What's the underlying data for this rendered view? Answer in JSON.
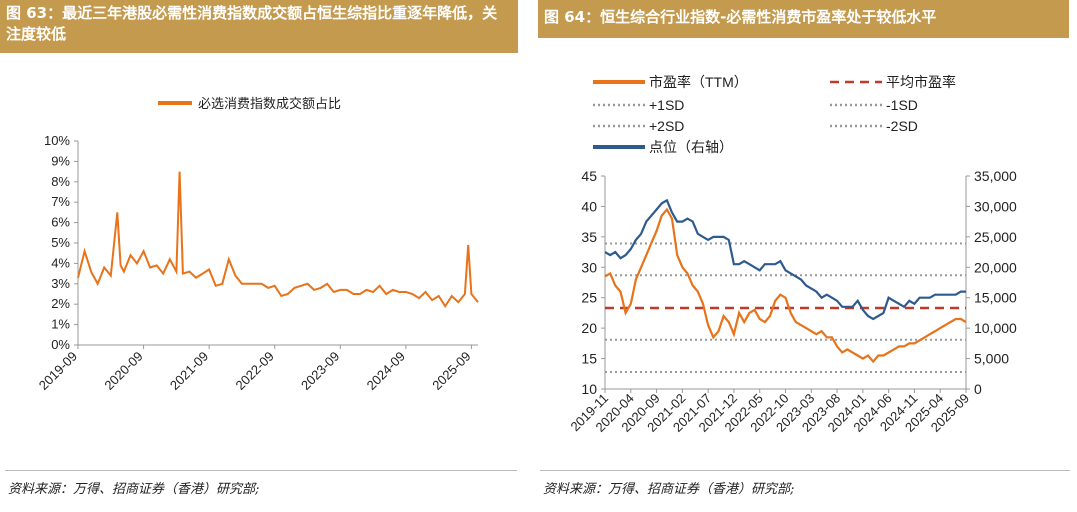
{
  "fig63": {
    "title": "图 63：最近三年港股必需性消费指数成交额占恒生综指比重逐年降低，关注度较低",
    "source": "资料来源：万得、招商证券（香港）研究部;",
    "chart_data": {
      "type": "line",
      "ylim": [
        0,
        10
      ],
      "y_ticks": [
        "0%",
        "1%",
        "2%",
        "3%",
        "4%",
        "5%",
        "6%",
        "7%",
        "8%",
        "9%",
        "10%"
      ],
      "x_ticks": [
        "2019-09",
        "2020-09",
        "2021-09",
        "2022-09",
        "2023-09",
        "2024-09",
        "2025-09"
      ],
      "series": [
        {
          "name": "必选消费指数成交额占比",
          "color": "#e8731a",
          "x": [
            2019.7,
            2019.8,
            2019.9,
            2020.0,
            2020.1,
            2020.2,
            2020.3,
            2020.35,
            2020.4,
            2020.5,
            2020.6,
            2020.7,
            2020.8,
            2020.9,
            2021.0,
            2021.1,
            2021.2,
            2021.25,
            2021.3,
            2021.4,
            2021.5,
            2021.6,
            2021.7,
            2021.8,
            2021.9,
            2022.0,
            2022.1,
            2022.2,
            2022.3,
            2022.4,
            2022.5,
            2022.6,
            2022.7,
            2022.8,
            2022.9,
            2023.0,
            2023.1,
            2023.2,
            2023.3,
            2023.4,
            2023.5,
            2023.6,
            2023.7,
            2023.8,
            2023.9,
            2024.0,
            2024.1,
            2024.2,
            2024.3,
            2024.4,
            2024.5,
            2024.6,
            2024.7,
            2024.8,
            2024.9,
            2025.0,
            2025.1,
            2025.2,
            2025.3,
            2025.4,
            2025.5,
            2025.6,
            2025.65,
            2025.7,
            2025.75,
            2025.8
          ],
          "values": [
            3.3,
            4.6,
            3.6,
            3.0,
            3.8,
            3.4,
            6.5,
            3.9,
            3.6,
            4.4,
            4.0,
            4.6,
            3.8,
            3.9,
            3.5,
            4.2,
            3.6,
            8.5,
            3.5,
            3.6,
            3.3,
            3.5,
            3.7,
            2.9,
            3.0,
            4.2,
            3.4,
            3.0,
            3.0,
            3.0,
            3.0,
            2.8,
            2.9,
            2.4,
            2.5,
            2.8,
            2.9,
            3.0,
            2.7,
            2.8,
            3.0,
            2.6,
            2.7,
            2.7,
            2.5,
            2.5,
            2.7,
            2.6,
            2.9,
            2.5,
            2.7,
            2.6,
            2.6,
            2.5,
            2.3,
            2.6,
            2.2,
            2.4,
            1.9,
            2.4,
            2.1,
            2.5,
            4.9,
            2.5,
            2.3,
            2.1
          ]
        }
      ]
    }
  },
  "fig64": {
    "title": "图 64：恒生综合行业指数-必需性消费市盈率处于较低水平",
    "source": "资料来源：万得、招商证券（香港）研究部;",
    "chart_data": {
      "type": "line",
      "ylim_left": [
        10,
        45
      ],
      "ylim_right": [
        0,
        35000
      ],
      "y_ticks_left": [
        "10",
        "15",
        "20",
        "25",
        "30",
        "35",
        "40",
        "45"
      ],
      "y_ticks_right": [
        "0",
        "5,000",
        "10,000",
        "15,000",
        "20,000",
        "25,000",
        "30,000",
        "35,000"
      ],
      "x_ticks": [
        "2019-11",
        "2020-04",
        "2020-09",
        "2021-02",
        "2021-07",
        "2021-12",
        "2022-05",
        "2022-10",
        "2023-03",
        "2023-08",
        "2024-01",
        "2024-06",
        "2024-11",
        "2025-04",
        "2025-09"
      ],
      "legend": [
        {
          "label": "市盈率（TTM）",
          "style": "solid",
          "color": "#e8731a"
        },
        {
          "label": "平均市盈率",
          "style": "dashed",
          "color": "#c0392b"
        },
        {
          "label": "+1SD",
          "style": "dotted",
          "color": "#999999"
        },
        {
          "label": "-1SD",
          "style": "dotted",
          "color": "#999999"
        },
        {
          "label": "+2SD",
          "style": "dotted",
          "color": "#999999"
        },
        {
          "label": "-2SD",
          "style": "dotted",
          "color": "#999999"
        },
        {
          "label": "点位（右轴）",
          "style": "solid",
          "color": "#2e5a8e"
        }
      ],
      "reference_lines": {
        "mean": 23.3,
        "plus1sd": 28.7,
        "minus1sd": 18.1,
        "plus2sd": 33.9,
        "minus2sd": 12.8
      },
      "series": [
        {
          "name": "市盈率（TTM）",
          "color": "#e8731a",
          "axis": "left",
          "x": [
            0,
            1,
            2,
            3,
            4,
            5,
            6,
            7,
            8,
            9,
            10,
            11,
            12,
            13,
            14,
            15,
            16,
            17,
            18,
            19,
            20,
            21,
            22,
            23,
            24,
            25,
            26,
            27,
            28,
            29,
            30,
            31,
            32,
            33,
            34,
            35,
            36,
            37,
            38,
            39,
            40,
            41,
            42,
            43,
            44,
            45,
            46,
            47,
            48,
            49,
            50,
            51,
            52,
            53,
            54,
            55,
            56,
            57,
            58,
            59,
            60,
            61,
            62,
            63,
            64,
            65,
            66,
            67,
            68,
            69,
            70
          ],
          "values": [
            28.5,
            29.0,
            27.0,
            26.0,
            22.5,
            24.0,
            28.0,
            30.0,
            32.0,
            34.0,
            36.0,
            38.5,
            39.5,
            38.0,
            32.0,
            30.0,
            29.0,
            27.0,
            26.0,
            24.0,
            20.5,
            18.5,
            19.5,
            22.0,
            21.0,
            19.0,
            22.5,
            21.0,
            22.5,
            23.0,
            21.5,
            21.0,
            22.0,
            24.5,
            25.5,
            25.0,
            22.5,
            21.0,
            20.5,
            20.0,
            19.5,
            19.0,
            19.5,
            18.5,
            18.5,
            17.0,
            16.0,
            16.5,
            16.0,
            15.5,
            15.0,
            15.5,
            14.5,
            15.5,
            15.5,
            16.0,
            16.5,
            17.0,
            17.0,
            17.5,
            17.5,
            18.0,
            18.5,
            19.0,
            19.5,
            20.0,
            20.5,
            21.0,
            21.5,
            21.5,
            21.0
          ]
        },
        {
          "name": "点位（右轴）",
          "color": "#2e5a8e",
          "axis": "right",
          "x": [
            0,
            1,
            2,
            3,
            4,
            5,
            6,
            7,
            8,
            9,
            10,
            11,
            12,
            13,
            14,
            15,
            16,
            17,
            18,
            19,
            20,
            21,
            22,
            23,
            24,
            25,
            26,
            27,
            28,
            29,
            30,
            31,
            32,
            33,
            34,
            35,
            36,
            37,
            38,
            39,
            40,
            41,
            42,
            43,
            44,
            45,
            46,
            47,
            48,
            49,
            50,
            51,
            52,
            53,
            54,
            55,
            56,
            57,
            58,
            59,
            60,
            61,
            62,
            63,
            64,
            65,
            66,
            67,
            68,
            69,
            70
          ],
          "values": [
            22500,
            22000,
            22500,
            21500,
            22000,
            23000,
            24500,
            25500,
            27500,
            28500,
            29500,
            30500,
            31000,
            29000,
            27500,
            27500,
            28000,
            27500,
            25500,
            25000,
            24500,
            25000,
            25000,
            25000,
            24500,
            20500,
            20500,
            21000,
            20500,
            20000,
            19500,
            20500,
            20500,
            20500,
            21000,
            19500,
            19000,
            18500,
            18000,
            17000,
            16500,
            16000,
            15000,
            15500,
            15000,
            14500,
            13500,
            13500,
            13500,
            14500,
            13000,
            12000,
            11500,
            12000,
            12500,
            15000,
            14500,
            14000,
            13500,
            14500,
            14000,
            15000,
            15000,
            15000,
            15500,
            15500,
            15500,
            15500,
            15500,
            16000,
            16000
          ]
        }
      ]
    }
  }
}
